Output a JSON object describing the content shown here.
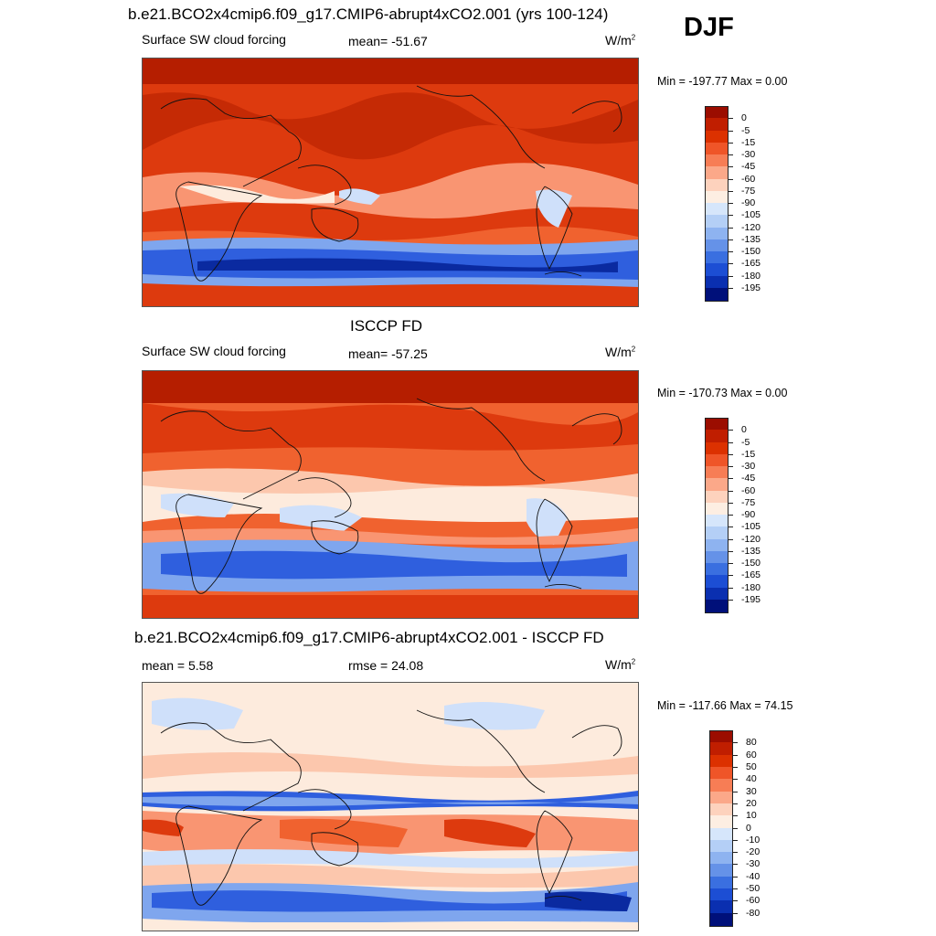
{
  "season": "DJF",
  "panels": [
    {
      "id": "model",
      "title": "b.e21.BCO2x4cmip6.f09_g17.CMIP6-abrupt4xCO2.001 (yrs 100-124)",
      "left_label": "Surface SW cloud forcing",
      "center_label": "mean= -51.67",
      "units_base": "W/m",
      "units_exp": "2",
      "minmax": "Min = -197.77 Max =   0.00",
      "colorbar": "abs"
    },
    {
      "id": "obs",
      "title": "ISCCP FD",
      "left_label": "Surface SW cloud forcing",
      "center_label": "mean= -57.25",
      "units_base": "W/m",
      "units_exp": "2",
      "minmax": "Min = -170.73 Max =   0.00",
      "colorbar": "abs"
    },
    {
      "id": "diff",
      "title": "b.e21.BCO2x4cmip6.f09_g17.CMIP6-abrupt4xCO2.001 - ISCCP FD",
      "left_label": "mean =   5.58",
      "center_label": "rmse =  24.08",
      "units_base": "W/m",
      "units_exp": "2",
      "minmax": "Min = -117.66 Max =  74.15",
      "colorbar": "diff"
    }
  ],
  "colorbars": {
    "abs": {
      "labels": [
        "0",
        "-5",
        "-15",
        "-30",
        "-45",
        "-60",
        "-75",
        "-90",
        "-105",
        "-120",
        "-135",
        "-150",
        "-165",
        "-180",
        "-195"
      ],
      "colors": [
        "#9b0d00",
        "#c01e00",
        "#dc3100",
        "#ef5528",
        "#f77d55",
        "#fba889",
        "#fdd2bd",
        "#fdeee2",
        "#d6e6fb",
        "#b4cff6",
        "#8eb3f0",
        "#6592e8",
        "#3a6fe0",
        "#1c4ed4",
        "#0a2fb0",
        "#00107a"
      ]
    },
    "diff": {
      "labels": [
        "80",
        "60",
        "50",
        "40",
        "30",
        "20",
        "10",
        "0",
        "-10",
        "-20",
        "-30",
        "-40",
        "-50",
        "-60",
        "-80"
      ],
      "colors": [
        "#9b0d00",
        "#c01e00",
        "#dc3100",
        "#ef5528",
        "#f77d55",
        "#fba889",
        "#fdd2bd",
        "#fdeee2",
        "#d6e6fb",
        "#b4cff6",
        "#8eb3f0",
        "#6592e8",
        "#3a6fe0",
        "#1c4ed4",
        "#0a2fb0",
        "#00107a"
      ]
    }
  },
  "map_colors": {
    "deep_red": "#b51e00",
    "red": "#dd3a0e",
    "orange": "#f0622f",
    "salmon": "#f99572",
    "peach": "#fcc7ad",
    "cream": "#fdebdd",
    "light_blue": "#cfe0fa",
    "blue": "#7fa6ee",
    "strong_blue": "#2f5fde",
    "navy": "#0a2aa0"
  }
}
